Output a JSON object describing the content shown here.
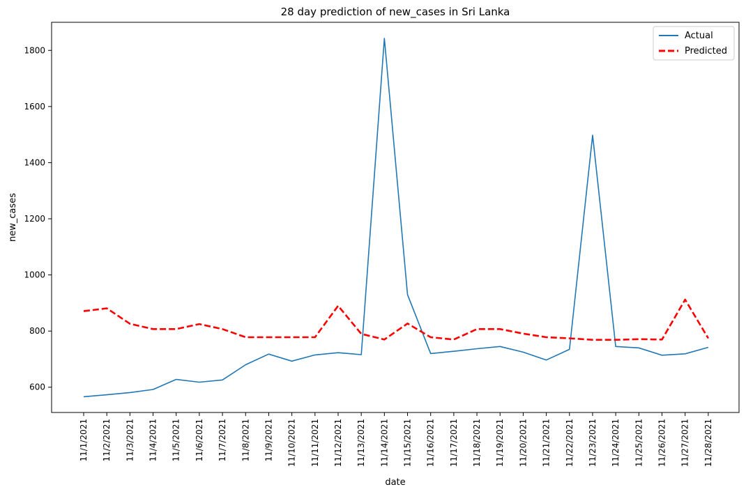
{
  "chart_data": {
    "type": "line",
    "title": "28 day prediction of new_cases in Sri Lanka",
    "xlabel": "date",
    "ylabel": "new_cases",
    "ylim": [
      510,
      1900
    ],
    "yticks": [
      600,
      800,
      1000,
      1200,
      1400,
      1600,
      1800
    ],
    "grid": false,
    "legend_position": "top-right",
    "categories": [
      "11/1/2021",
      "11/2/2021",
      "11/3/2021",
      "11/4/2021",
      "11/5/2021",
      "11/6/2021",
      "11/7/2021",
      "11/8/2021",
      "11/9/2021",
      "11/10/2021",
      "11/11/2021",
      "11/12/2021",
      "11/13/2021",
      "11/14/2021",
      "11/15/2021",
      "11/16/2021",
      "11/17/2021",
      "11/18/2021",
      "11/19/2021",
      "11/20/2021",
      "11/21/2021",
      "11/22/2021",
      "11/23/2021",
      "11/24/2021",
      "11/25/2021",
      "11/26/2021",
      "11/27/2021",
      "11/28/2021"
    ],
    "series": [
      {
        "name": "Actual",
        "color": "#1f77b4",
        "style": "solid",
        "values": [
          566,
          573,
          581,
          592,
          628,
          618,
          626,
          680,
          718,
          693,
          715,
          723,
          716,
          1843,
          930,
          720,
          728,
          737,
          745,
          725,
          697,
          735,
          1498,
          745,
          740,
          714,
          719,
          742
        ]
      },
      {
        "name": "Predicted",
        "color": "#ff0000",
        "style": "dashed",
        "values": [
          871,
          881,
          826,
          807,
          807,
          825,
          807,
          778,
          778,
          778,
          778,
          890,
          790,
          770,
          827,
          778,
          770,
          807,
          807,
          791,
          778,
          774,
          769,
          769,
          771,
          770,
          912,
          774
        ]
      }
    ]
  }
}
